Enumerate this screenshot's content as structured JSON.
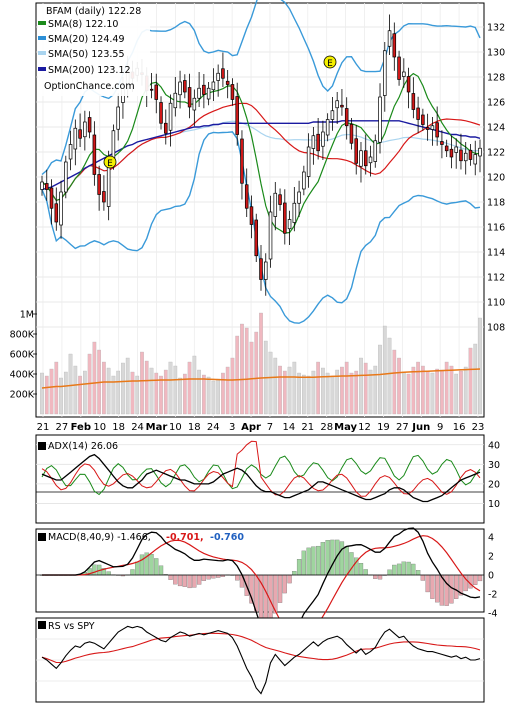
{
  "price_panel": {
    "title": "BFAM (daily) 122.28",
    "watermark": "OptionChance.com",
    "legend": [
      {
        "label": "SMA(8) 122.10",
        "color": "#1a8a1a"
      },
      {
        "label": "SMA(20) 124.49",
        "color": "#2c8fd6"
      },
      {
        "label": "SMA(50) 123.55",
        "color": "#a9d4ef"
      },
      {
        "label": "SMA(200) 123.12",
        "color": "#1a1aa0"
      }
    ],
    "y_ticks": [
      "132",
      "130",
      "128",
      "126",
      "124",
      "122",
      "120",
      "118",
      "116",
      "114",
      "112",
      "110",
      "108"
    ],
    "volume_ticks": [
      "1M",
      "800K",
      "600K",
      "400K",
      "200K"
    ],
    "earnings_marker": "E"
  },
  "x_axis": {
    "ticks": [
      "21",
      "27",
      "Feb",
      "10",
      "18",
      "24",
      "Mar",
      "10",
      "18",
      "24",
      "3",
      "Apr",
      "7",
      "14",
      "21",
      "28",
      "May",
      "12",
      "19",
      "27",
      "Jun",
      "9",
      "16",
      "23"
    ]
  },
  "adx_panel": {
    "label": "ADX(14) 26.06",
    "y_ticks": [
      "40",
      "30",
      "20",
      "10"
    ]
  },
  "macd_panel": {
    "label": "MACD(8,40,9) -1.466,",
    "value_red": "-0.701,",
    "value_blue": "-0.760",
    "y_ticks": [
      "4",
      "2",
      "0",
      "-2",
      "-4"
    ]
  },
  "rs_panel": {
    "label": "RS vs SPY"
  },
  "colors": {
    "sma8": "#1a8a1a",
    "sma20": "#2c8fd6",
    "sma50": "#a9d4ef",
    "sma200": "#1a1aa0",
    "bollinger": "#3a9ad9",
    "red_line": "#d81818",
    "yellow_band": "#e8e000",
    "candle_up": "#ffffff",
    "candle_down": "#d01818",
    "vol_up": "#d8d8d8",
    "vol_down": "#f0b8c0",
    "vol_avg": "#e87818",
    "macd_hist_pos": "#9fd59f",
    "macd_hist_neg": "#e8a8b0"
  },
  "chart_data": {
    "type": "candlestick",
    "y_range": [
      107,
      133.5
    ],
    "closes": [
      119.6,
      119.0,
      117.5,
      116.4,
      118.8,
      121.2,
      122.6,
      123.9,
      123.1,
      124.4,
      123.6,
      120.2,
      118.6,
      118.0,
      121.2,
      123.7,
      125.6,
      127.3,
      128.4,
      127.9,
      128.7,
      128.2,
      126.9,
      127.0,
      126.2,
      124.3,
      123.5,
      125.9,
      126.7,
      127.6,
      126.8,
      125.6,
      126.3,
      127.1,
      126.6,
      127.1,
      127.6,
      128.3,
      127.9,
      127.4,
      126.2,
      123.4,
      119.5,
      117.5,
      116.2,
      113.7,
      111.8,
      113.2,
      117.2,
      118.7,
      117.8,
      115.5,
      116.6,
      117.9,
      118.8,
      120.4,
      122.4,
      123.3,
      122.1,
      123.6,
      124.6,
      125.3,
      126.1,
      125.6,
      124.1,
      122.7,
      121.1,
      122.1,
      120.9,
      121.6,
      122.9,
      126.4,
      130.1,
      131.7,
      129.6,
      127.8,
      128.4,
      126.8,
      125.4,
      124.6,
      124.2,
      123.8,
      124.1,
      123.2,
      122.6,
      122.1,
      121.6,
      122.4,
      121.3,
      121.9,
      121.4,
      121.8,
      122.3
    ],
    "sma200": [
      119.0,
      119.1,
      119.2,
      119.4,
      119.6,
      119.8,
      120.0,
      120.2,
      120.4,
      120.7,
      120.9,
      121.1,
      121.3,
      121.5,
      121.7,
      121.9,
      122.1,
      122.3,
      122.5,
      122.6,
      122.8,
      122.9,
      123.0,
      123.1,
      123.2,
      123.3,
      123.4,
      123.5,
      123.6,
      123.7,
      123.8,
      123.9,
      124.0,
      124.0,
      124.1,
      124.1,
      124.2,
      124.2,
      124.3,
      124.3,
      124.3,
      124.3,
      124.3,
      124.3,
      124.3,
      124.3,
      124.3,
      124.3,
      124.3,
      124.3,
      124.3,
      124.3,
      124.3,
      124.3,
      124.3,
      124.3,
      124.3,
      124.4,
      124.4,
      124.4,
      124.4,
      124.4,
      124.4,
      124.5,
      124.5,
      124.5,
      124.5,
      124.5,
      124.5,
      124.5,
      124.5,
      124.5,
      124.5,
      124.5,
      124.5,
      124.5,
      124.4,
      124.3,
      124.2,
      124.1,
      124.0,
      123.9,
      123.8,
      123.7,
      123.6,
      123.5,
      123.4,
      123.4,
      123.3,
      123.3,
      123.2,
      123.2,
      123.1
    ],
    "volume_k": [
      410,
      380,
      450,
      520,
      360,
      420,
      600,
      480,
      380,
      430,
      600,
      720,
      640,
      520,
      460,
      380,
      430,
      510,
      560,
      420,
      380,
      620,
      530,
      460,
      410,
      380,
      440,
      520,
      480,
      360,
      400,
      520,
      580,
      440,
      390,
      370,
      330,
      350,
      410,
      470,
      560,
      780,
      900,
      860,
      720,
      820,
      1010,
      730,
      620,
      560,
      480,
      430,
      470,
      520,
      410,
      390,
      380,
      430,
      520,
      460,
      410,
      380,
      440,
      470,
      520,
      410,
      430,
      560,
      510,
      440,
      480,
      690,
      880,
      760,
      640,
      560,
      420,
      400,
      470,
      520,
      480,
      430,
      410,
      450,
      440,
      520,
      480,
      400,
      430,
      470,
      660,
      700,
      960
    ],
    "vol_avg_k": [
      260,
      265,
      270,
      275,
      275,
      280,
      285,
      290,
      295,
      300,
      305,
      310,
      315,
      320,
      320,
      320,
      322,
      325,
      328,
      330,
      330,
      332,
      334,
      336,
      338,
      340,
      340,
      340,
      342,
      345,
      348,
      350,
      350,
      350,
      350,
      348,
      346,
      344,
      342,
      340,
      340,
      342,
      345,
      348,
      352,
      356,
      360,
      362,
      365,
      368,
      370,
      370,
      370,
      370,
      368,
      368,
      368,
      368,
      370,
      372,
      374,
      376,
      378,
      380,
      380,
      382,
      384,
      386,
      388,
      390,
      392,
      395,
      400,
      405,
      410,
      414,
      418,
      420,
      422,
      424,
      426,
      428,
      430,
      432,
      434,
      436,
      438,
      440,
      442,
      444,
      446,
      448,
      450
    ],
    "adx": [
      25,
      24,
      23,
      22,
      22,
      24,
      26,
      28,
      30,
      32,
      34,
      35,
      33,
      30,
      27,
      24,
      21,
      19,
      18,
      18,
      20,
      22,
      25,
      26,
      27,
      26,
      25,
      24,
      23,
      22,
      22,
      21,
      20,
      20,
      20,
      20,
      21,
      23,
      25,
      26,
      27,
      28,
      27,
      25,
      22,
      19,
      17,
      16,
      16,
      15,
      14,
      13,
      13,
      14,
      15,
      16,
      17,
      19,
      21,
      21,
      20,
      19,
      18,
      17,
      16,
      15,
      14,
      13,
      12,
      12,
      13,
      14,
      15,
      17,
      18,
      18,
      17,
      15,
      13,
      12,
      11,
      11,
      12,
      13,
      14,
      16,
      18,
      20,
      22,
      23,
      24,
      25,
      26
    ],
    "rs_spy": [
      52,
      50,
      47,
      44,
      48,
      53,
      57,
      60,
      59,
      62,
      63,
      62,
      60,
      58,
      62,
      66,
      70,
      72,
      74,
      73,
      74,
      73,
      70,
      68,
      66,
      64,
      63,
      66,
      68,
      70,
      69,
      67,
      68,
      69,
      68,
      69,
      70,
      71,
      70,
      69,
      66,
      60,
      52,
      44,
      38,
      30,
      26,
      34,
      48,
      54,
      50,
      46,
      49,
      52,
      54,
      57,
      60,
      63,
      60,
      63,
      65,
      66,
      67,
      65,
      61,
      58,
      55,
      58,
      54,
      56,
      59,
      65,
      70,
      72,
      69,
      66,
      67,
      63,
      60,
      58,
      57,
      56,
      56,
      55,
      54,
      53,
      52,
      53,
      51,
      52,
      50,
      50,
      51
    ]
  }
}
